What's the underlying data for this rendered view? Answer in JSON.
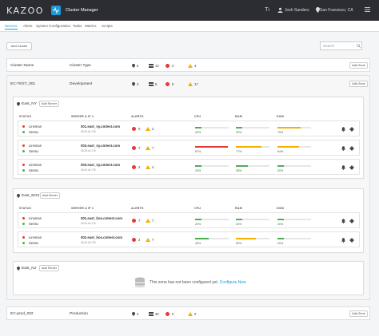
{
  "header": {
    "logo": "KAZOO",
    "app_name": "Cluster Manager",
    "user": "Josh Sanders",
    "location": "San Francisco, CA"
  },
  "tabs": [
    {
      "label": "Servers",
      "active": true
    },
    {
      "label": "Alerts"
    },
    {
      "label": "System Configuration"
    },
    {
      "label": "Tasks"
    },
    {
      "label": "Metrics"
    },
    {
      "label": "Scripts"
    }
  ],
  "toolbar": {
    "add_cluster": "Add Cluster",
    "search_placeholder": "Search"
  },
  "summary_header": {
    "name": "Cluster Name",
    "type": "Cluster Type",
    "zones": "6",
    "servers": "12",
    "alerts_red": "2",
    "alerts_warn": "4",
    "add_zone": "Add Zone"
  },
  "clusters": [
    {
      "name": "EC-TEST_001",
      "type": "Development",
      "zones": "3",
      "servers": "5",
      "alerts_red": "5",
      "alerts_warn": "17",
      "add_zone": "Add Zone"
    },
    {
      "name": "EC-prod_002",
      "type": "Production",
      "zones": "3",
      "servers": "30",
      "alerts_red": "0",
      "alerts_warn": "0",
      "add_zone": "Add Zone"
    }
  ],
  "columns": {
    "status": "STATUS",
    "server": "SERVER & IP #",
    "alerts": "ALERTS",
    "cpu": "CPU",
    "ram": "RAM",
    "disk": "DISK"
  },
  "zones": [
    {
      "name": "East_NY",
      "add_server": "Add Server",
      "servers": [
        {
          "s1": "Lineman",
          "s2": "Sensu",
          "host": "001.east_ny.cmtest.com",
          "ip": "45.26.44.176",
          "red": "0",
          "warn": "2",
          "cpu": 20,
          "ram": 20,
          "disk": 70,
          "cpu_label": "20%",
          "ram_label": "20%",
          "disk_label": "70%"
        },
        {
          "s1": "Lineman",
          "s2": "Sensu",
          "host": "002.east_ny.cmtest.com",
          "ip": "45.26.44.176",
          "red": "7",
          "warn": "7",
          "cpu": 97,
          "ram": 77,
          "disk": 64,
          "cpu_label": "97%",
          "ram_label": "77%",
          "disk_label": "64%"
        },
        {
          "s1": "Lineman",
          "s2": "Sensu",
          "host": "003.east_ny.cmtest.com",
          "ip": "45.26.44.176",
          "red": "2",
          "warn": "4",
          "cpu": 20,
          "ram": 35,
          "disk": 20,
          "cpu_label": "20%",
          "ram_label": "35%",
          "disk_label": "20%"
        }
      ]
    },
    {
      "name": "East_BOS",
      "add_server": "Add Server",
      "servers": [
        {
          "s1": "Lineman",
          "s2": "Sensu",
          "host": "001.east_bos.cmtest.com",
          "ip": "45.26.44.176",
          "red": "7",
          "warn": "7",
          "cpu": 20,
          "ram": 20,
          "disk": 20,
          "cpu_label": "20%",
          "ram_label": "20%",
          "disk_label": "20%"
        },
        {
          "s1": "Lineman",
          "s2": "Sensu",
          "host": "002.east_bos.cmtest.com",
          "ip": "45.26.44.176",
          "red": "2",
          "warn": "7",
          "cpu": 40,
          "ram": 60,
          "disk": 20,
          "cpu_label": "40%",
          "ram_label": "60%",
          "disk_label": "20%"
        }
      ]
    },
    {
      "name": "East_NJ",
      "add_server": "Add Server",
      "empty_text": "This zone has not been configured yet.",
      "configure": "Configure Now"
    }
  ],
  "colors": {
    "accent": "#1d9bd7",
    "green": "#4caf50",
    "yellow": "#f5b000",
    "red": "#e53935"
  }
}
